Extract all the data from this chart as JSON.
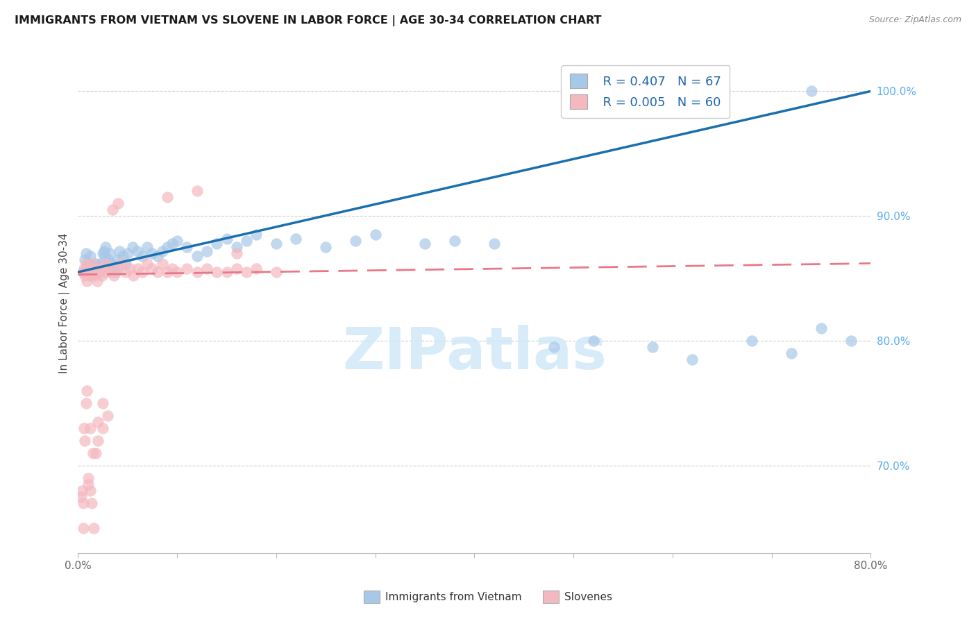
{
  "title": "IMMIGRANTS FROM VIETNAM VS SLOVENE IN LABOR FORCE | AGE 30-34 CORRELATION CHART",
  "source": "Source: ZipAtlas.com",
  "ylabel": "In Labor Force | Age 30-34",
  "xlim": [
    0.0,
    0.8
  ],
  "ylim": [
    0.63,
    1.03
  ],
  "xtick_positions": [
    0.0,
    0.1,
    0.2,
    0.3,
    0.4,
    0.5,
    0.6,
    0.7,
    0.8
  ],
  "xticklabels": [
    "0.0%",
    "",
    "",
    "",
    "",
    "",
    "",
    "",
    "80.0%"
  ],
  "yticks_right": [
    0.7,
    0.8,
    0.9,
    1.0
  ],
  "ytick_right_labels": [
    "70.0%",
    "80.0%",
    "90.0%",
    "100.0%"
  ],
  "vietnam_color": "#a8c8e8",
  "slovene_color": "#f4b8c0",
  "vietnam_line_color": "#1a6faf",
  "slovene_line_color": "#e87888",
  "vietnam_R": 0.407,
  "vietnam_N": 67,
  "slovene_R": 0.005,
  "slovene_N": 60,
  "watermark": "ZIPatlas",
  "watermark_color": "#d0e8f8",
  "vietnam_x": [
    0.005,
    0.007,
    0.008,
    0.009,
    0.01,
    0.011,
    0.012,
    0.013,
    0.014,
    0.015,
    0.016,
    0.017,
    0.018,
    0.019,
    0.02,
    0.021,
    0.022,
    0.023,
    0.025,
    0.026,
    0.027,
    0.028,
    0.03,
    0.032,
    0.034,
    0.036,
    0.038,
    0.04,
    0.042,
    0.045,
    0.048,
    0.05,
    0.055,
    0.06,
    0.065,
    0.07,
    0.075,
    0.08,
    0.085,
    0.09,
    0.095,
    0.1,
    0.11,
    0.12,
    0.13,
    0.14,
    0.15,
    0.16,
    0.17,
    0.18,
    0.2,
    0.22,
    0.25,
    0.28,
    0.3,
    0.35,
    0.38,
    0.42,
    0.48,
    0.52,
    0.58,
    0.62,
    0.68,
    0.72,
    0.75,
    0.78,
    0.74
  ],
  "vietnam_y": [
    0.855,
    0.865,
    0.87,
    0.858,
    0.862,
    0.855,
    0.868,
    0.852,
    0.86,
    0.856,
    0.858,
    0.855,
    0.862,
    0.858,
    0.86,
    0.855,
    0.862,
    0.858,
    0.87,
    0.872,
    0.868,
    0.875,
    0.865,
    0.87,
    0.862,
    0.858,
    0.855,
    0.865,
    0.872,
    0.868,
    0.862,
    0.87,
    0.875,
    0.872,
    0.868,
    0.875,
    0.87,
    0.868,
    0.872,
    0.875,
    0.878,
    0.88,
    0.875,
    0.868,
    0.872,
    0.878,
    0.882,
    0.875,
    0.88,
    0.885,
    0.878,
    0.882,
    0.875,
    0.88,
    0.885,
    0.878,
    0.88,
    0.878,
    0.795,
    0.8,
    0.795,
    0.785,
    0.8,
    0.79,
    0.81,
    0.8,
    1.0
  ],
  "slovene_x": [
    0.005,
    0.006,
    0.007,
    0.008,
    0.009,
    0.01,
    0.011,
    0.012,
    0.013,
    0.014,
    0.015,
    0.016,
    0.017,
    0.018,
    0.019,
    0.02,
    0.022,
    0.024,
    0.026,
    0.028,
    0.03,
    0.033,
    0.036,
    0.04,
    0.044,
    0.048,
    0.052,
    0.056,
    0.06,
    0.065,
    0.07,
    0.075,
    0.08,
    0.085,
    0.09,
    0.095,
    0.1,
    0.11,
    0.12,
    0.13,
    0.14,
    0.15,
    0.16,
    0.17,
    0.18,
    0.2,
    0.004,
    0.005,
    0.006,
    0.007,
    0.008,
    0.009,
    0.01,
    0.012,
    0.014,
    0.016,
    0.018,
    0.02,
    0.025,
    0.03
  ],
  "slovene_y": [
    0.855,
    0.858,
    0.852,
    0.862,
    0.848,
    0.855,
    0.86,
    0.852,
    0.858,
    0.855,
    0.862,
    0.855,
    0.852,
    0.858,
    0.848,
    0.855,
    0.858,
    0.852,
    0.855,
    0.862,
    0.858,
    0.855,
    0.852,
    0.858,
    0.862,
    0.855,
    0.858,
    0.852,
    0.858,
    0.855,
    0.862,
    0.858,
    0.855,
    0.862,
    0.855,
    0.858,
    0.855,
    0.858,
    0.855,
    0.858,
    0.855,
    0.855,
    0.858,
    0.855,
    0.858,
    0.855,
    0.68,
    0.67,
    0.73,
    0.72,
    0.75,
    0.76,
    0.69,
    0.68,
    0.67,
    0.65,
    0.71,
    0.72,
    0.73,
    0.74
  ],
  "slovene_x_outliers": [
    0.003,
    0.005,
    0.01,
    0.012,
    0.015,
    0.02,
    0.025,
    0.035,
    0.04,
    0.09,
    0.12,
    0.16
  ],
  "slovene_y_outliers": [
    0.675,
    0.65,
    0.685,
    0.73,
    0.71,
    0.735,
    0.75,
    0.905,
    0.91,
    0.915,
    0.92,
    0.87
  ]
}
